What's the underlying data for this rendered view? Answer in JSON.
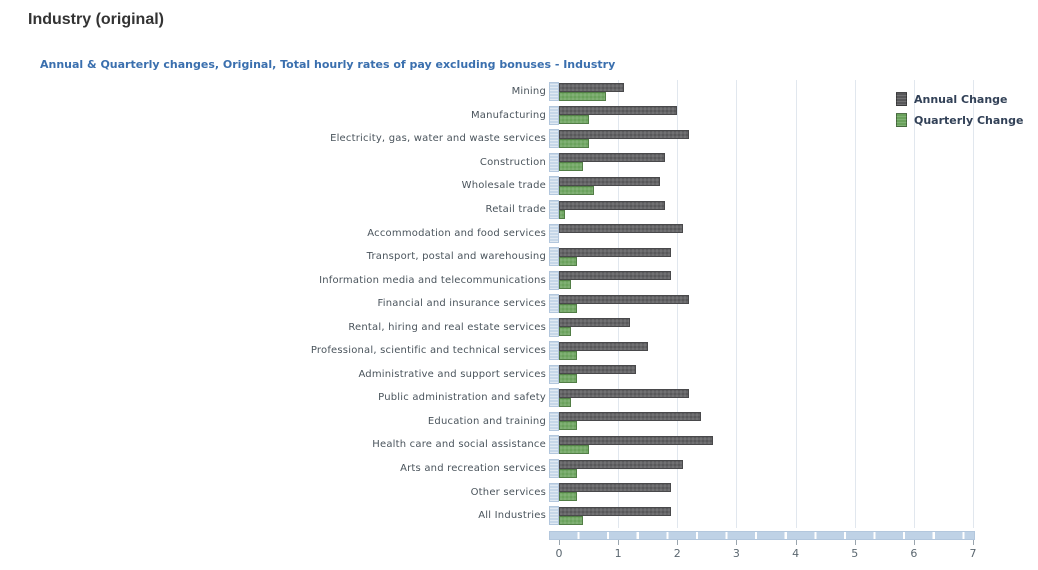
{
  "page": {
    "title": "Industry (original)"
  },
  "chart": {
    "subtitle": "Annual & Quarterly changes, Original, Total hourly rates of pay excluding bonuses - Industry",
    "legend": [
      {
        "label": "Annual Change",
        "color": "#58585a"
      },
      {
        "label": "Quarterly Change",
        "color": "#6aa25c"
      }
    ]
  },
  "chart_data": {
    "type": "bar",
    "orientation": "horizontal",
    "title": "Annual & Quarterly changes, Original, Total hourly rates of pay excluding bonuses - Industry",
    "categories": [
      "Mining",
      "Manufacturing",
      "Electricity, gas, water and waste services",
      "Construction",
      "Wholesale trade",
      "Retail trade",
      "Accommodation and food services",
      "Transport, postal and warehousing",
      "Information media and telecommunications",
      "Financial and insurance services",
      "Rental, hiring and real estate services",
      "Professional, scientific and technical services",
      "Administrative and support services",
      "Public administration and safety",
      "Education and training",
      "Health care and social assistance",
      "Arts and recreation services",
      "Other services",
      "All Industries"
    ],
    "series": [
      {
        "name": "Annual Change",
        "color": "#58585a",
        "values": [
          1.1,
          2.0,
          2.2,
          1.8,
          1.7,
          1.8,
          2.1,
          1.9,
          1.9,
          2.2,
          1.2,
          1.5,
          1.3,
          2.2,
          2.4,
          2.6,
          2.1,
          1.9,
          1.9
        ]
      },
      {
        "name": "Quarterly Change",
        "color": "#6aa25c",
        "values": [
          0.8,
          0.5,
          0.5,
          0.4,
          0.6,
          0.1,
          0.0,
          0.3,
          0.2,
          0.3,
          0.2,
          0.3,
          0.3,
          0.2,
          0.3,
          0.5,
          0.3,
          0.3,
          0.4
        ]
      }
    ],
    "xlabel": "",
    "ylabel": "",
    "xlim": [
      0,
      7
    ],
    "xticks": [
      0,
      1,
      2,
      3,
      4,
      5,
      6,
      7
    ],
    "grid": true,
    "legend_position": "top-right"
  }
}
